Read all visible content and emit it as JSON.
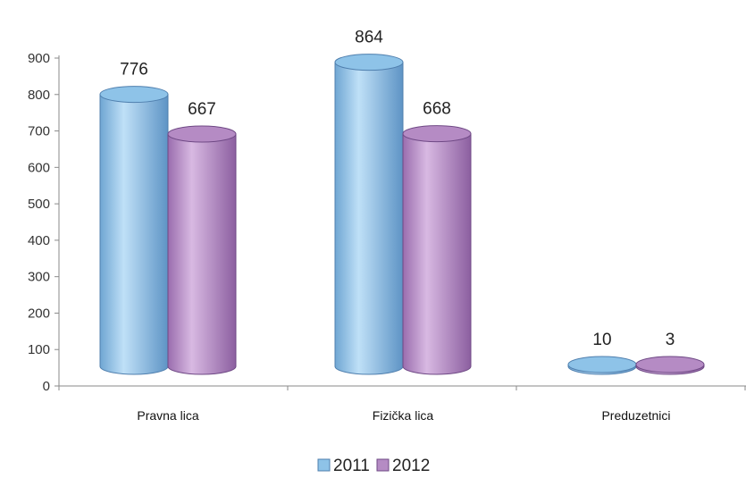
{
  "chart_data": {
    "type": "bar",
    "style": "3d-cylinder",
    "categories": [
      "Pravna lica",
      "Fizička lica",
      "Preduzetnici"
    ],
    "series": [
      {
        "name": "2011",
        "values": [
          776,
          864,
          10
        ],
        "color": "#8EC3E8"
      },
      {
        "name": "2012",
        "values": [
          667,
          668,
          3
        ],
        "color": "#B58BC4"
      }
    ],
    "ylim": [
      0,
      900
    ],
    "yticks": [
      0,
      100,
      200,
      300,
      400,
      500,
      600,
      700,
      800,
      900
    ],
    "grid": false,
    "legend_position": "bottom",
    "data_labels": true
  }
}
